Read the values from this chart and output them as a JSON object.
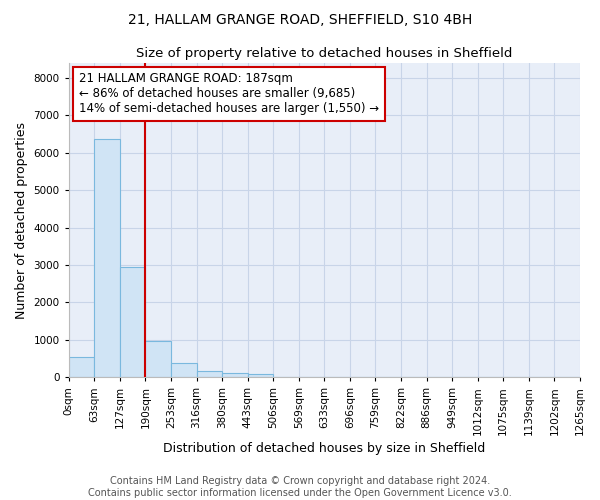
{
  "title_line1": "21, HALLAM GRANGE ROAD, SHEFFIELD, S10 4BH",
  "title_line2": "Size of property relative to detached houses in Sheffield",
  "xlabel": "Distribution of detached houses by size in Sheffield",
  "ylabel": "Number of detached properties",
  "bar_values": [
    550,
    6380,
    2950,
    975,
    380,
    165,
    110,
    90,
    0,
    0,
    0,
    0,
    0,
    0,
    0,
    0,
    0,
    0,
    0,
    0
  ],
  "x_labels": [
    "0sqm",
    "63sqm",
    "127sqm",
    "190sqm",
    "253sqm",
    "316sqm",
    "380sqm",
    "443sqm",
    "506sqm",
    "569sqm",
    "633sqm",
    "696sqm",
    "759sqm",
    "822sqm",
    "886sqm",
    "949sqm",
    "1012sqm",
    "1075sqm",
    "1139sqm",
    "1202sqm",
    "1265sqm"
  ],
  "bar_color": "#d0e4f5",
  "bar_edge_color": "#7ab8de",
  "vline_color": "#cc0000",
  "annotation_text": "21 HALLAM GRANGE ROAD: 187sqm\n← 86% of detached houses are smaller (9,685)\n14% of semi-detached houses are larger (1,550) →",
  "annotation_box_color": "#ffffff",
  "annotation_border_color": "#cc0000",
  "ylim": [
    0,
    8400
  ],
  "yticks": [
    0,
    1000,
    2000,
    3000,
    4000,
    5000,
    6000,
    7000,
    8000
  ],
  "grid_color": "#c8d4e8",
  "background_color": "#e8eef8",
  "footer_text": "Contains HM Land Registry data © Crown copyright and database right 2024.\nContains public sector information licensed under the Open Government Licence v3.0.",
  "title_fontsize": 10,
  "subtitle_fontsize": 9.5,
  "axis_label_fontsize": 9,
  "tick_fontsize": 7.5,
  "annotation_fontsize": 8.5,
  "footer_fontsize": 7
}
